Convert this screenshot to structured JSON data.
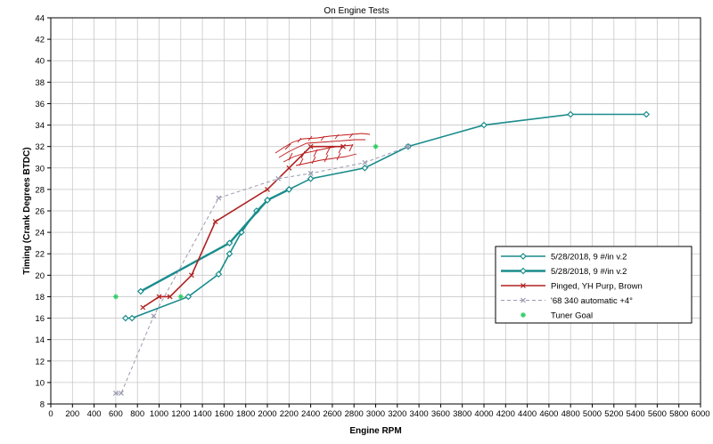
{
  "chart_data": {
    "type": "line",
    "title": "On Engine Tests",
    "xlabel": "Engine RPM",
    "ylabel": "Timing (Crank Degrees BTDC)",
    "xlim": [
      0,
      6000
    ],
    "ylim": [
      8,
      44
    ],
    "xticks": [
      0,
      200,
      400,
      600,
      800,
      1000,
      1200,
      1400,
      1600,
      1800,
      2000,
      2200,
      2400,
      2600,
      2800,
      3000,
      3200,
      3400,
      3600,
      3800,
      4000,
      4200,
      4400,
      4600,
      4800,
      5000,
      5200,
      5400,
      5600,
      5800,
      6000
    ],
    "yticks": [
      8,
      10,
      12,
      14,
      16,
      18,
      20,
      22,
      24,
      26,
      28,
      30,
      32,
      34,
      36,
      38,
      40,
      42,
      44
    ],
    "grid": true,
    "legend_position": "right",
    "series": [
      {
        "name": "5/28/2018, 9 #/in v.2",
        "color": "#1a8c8c",
        "marker": "diamond",
        "line": "solid",
        "points": [
          [
            690,
            16
          ],
          [
            750,
            16
          ],
          [
            1270,
            18
          ],
          [
            1550,
            20.1
          ],
          [
            1650,
            22
          ],
          [
            1760,
            24
          ],
          [
            1900,
            26
          ],
          [
            2000,
            27
          ],
          [
            2200,
            28
          ],
          [
            2400,
            29
          ],
          [
            2900,
            30
          ],
          [
            3300,
            32
          ],
          [
            4000,
            34
          ],
          [
            4800,
            35
          ],
          [
            5500,
            35
          ]
        ]
      },
      {
        "name": "5/28/2018, 9 #/in v.2",
        "color": "#1a8c8c",
        "marker": "diamond",
        "line": "solid-thick",
        "points": [
          [
            830,
            18.5
          ],
          [
            1650,
            23
          ],
          [
            2000,
            27
          ],
          [
            2200,
            28
          ]
        ]
      },
      {
        "name": "Pinged, YH Purp, Brown",
        "color": "#b02020",
        "marker": "x",
        "line": "solid",
        "points": [
          [
            850,
            17
          ],
          [
            1000,
            18
          ],
          [
            1100,
            18
          ],
          [
            1300,
            20
          ],
          [
            1520,
            25
          ],
          [
            2000,
            28
          ],
          [
            2200,
            30
          ],
          [
            2400,
            32
          ],
          [
            2700,
            32
          ]
        ]
      },
      {
        "name": "'68 340 automatic +4°",
        "color": "#9a9ab0",
        "marker": "x",
        "line": "dashed",
        "points": [
          [
            600,
            9
          ],
          [
            650,
            9
          ],
          [
            950,
            16.2
          ],
          [
            1550,
            27.2
          ],
          [
            2100,
            29
          ],
          [
            2400,
            29.5
          ],
          [
            2900,
            30.5
          ],
          [
            3300,
            32
          ]
        ]
      },
      {
        "name": "Tuner Goal",
        "color": "#33cc66",
        "marker": "star",
        "line": "none",
        "points": [
          [
            600,
            18
          ],
          [
            1200,
            18
          ],
          [
            3000,
            32
          ]
        ]
      }
    ]
  }
}
